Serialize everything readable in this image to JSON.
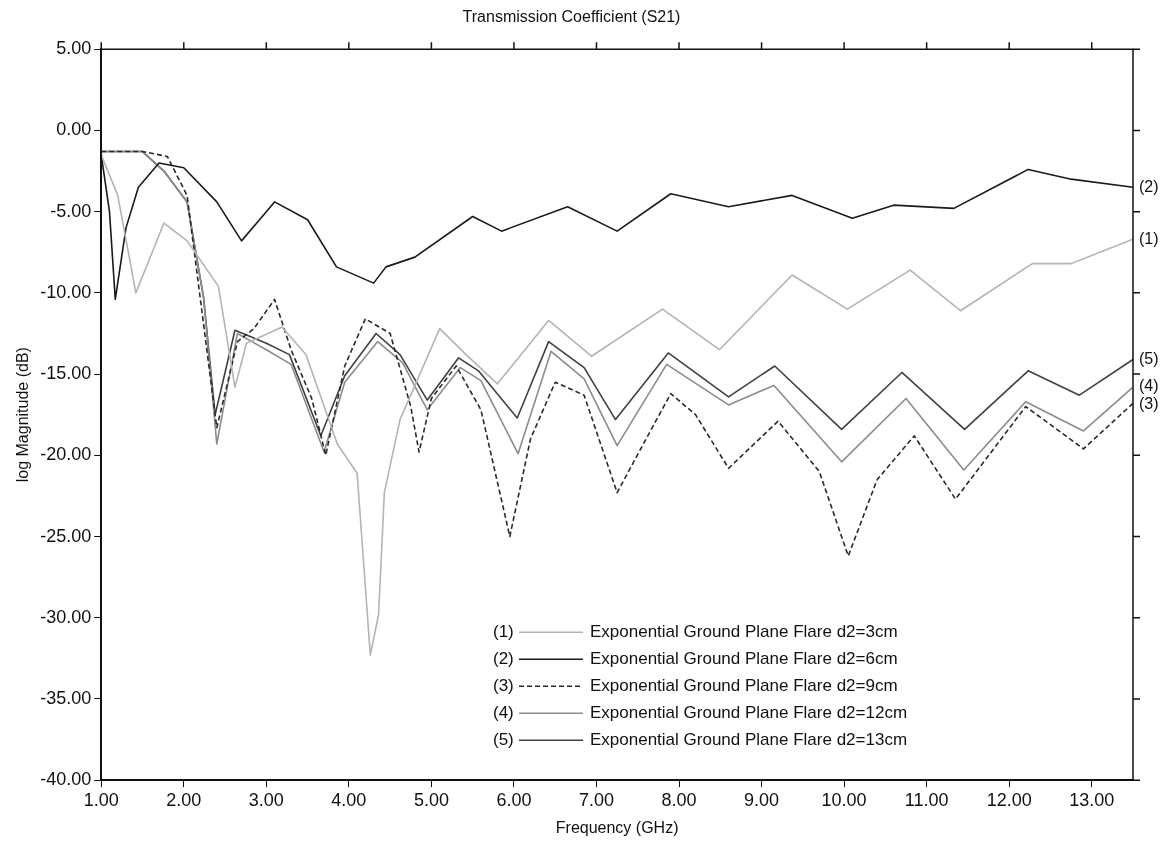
{
  "chart_data": {
    "type": "line",
    "title": "Transmission Coefficient (S21)",
    "xlabel": "Frequency (GHz)",
    "ylabel": "log Magnitude (dB)",
    "xlim": [
      1,
      13.5
    ],
    "ylim": [
      -40,
      5
    ],
    "xticks": [
      {
        "value": 1,
        "label": "1.00"
      },
      {
        "value": 2,
        "label": "2.00"
      },
      {
        "value": 3,
        "label": "3.00"
      },
      {
        "value": 4,
        "label": "4.00"
      },
      {
        "value": 5,
        "label": "5.00"
      },
      {
        "value": 6,
        "label": "6.00"
      },
      {
        "value": 7,
        "label": "7.00"
      },
      {
        "value": 8,
        "label": "8.00"
      },
      {
        "value": 9,
        "label": "9.00"
      },
      {
        "value": 10,
        "label": "10.00"
      },
      {
        "value": 11,
        "label": "11.00"
      },
      {
        "value": 12,
        "label": "12.00"
      },
      {
        "value": 13,
        "label": "13.00"
      }
    ],
    "yticks": [
      {
        "value": 5,
        "label": "5.00"
      },
      {
        "value": 0,
        "label": "0.00"
      },
      {
        "value": -5,
        "label": "-5.00"
      },
      {
        "value": -10,
        "label": "-10.00"
      },
      {
        "value": -15,
        "label": "-15.00"
      },
      {
        "value": -20,
        "label": "-20.00"
      },
      {
        "value": -25,
        "label": "-25.00"
      },
      {
        "value": -30,
        "label": "-30.00"
      },
      {
        "value": -35,
        "label": "-35.00"
      },
      {
        "value": -40,
        "label": "-40.00"
      }
    ],
    "grid": false,
    "legend": "bottom right",
    "marker": "none",
    "annotations": [
      "(1)",
      "(2)",
      "(3)",
      "(4)",
      "(5)"
    ],
    "series": [
      {
        "name": "Exponential Ground Plane Flare d2=3cm",
        "color": "#b4b4b4",
        "line_style": "solid",
        "x": [
          1.0,
          1.2,
          1.42,
          1.76,
          2.04,
          2.42,
          2.62,
          2.76,
          3.19,
          3.48,
          3.86,
          4.1,
          4.26,
          4.36,
          4.43,
          4.62,
          5.1,
          5.42,
          5.8,
          6.42,
          6.94,
          7.8,
          8.49,
          9.37,
          10.04,
          10.8,
          11.41,
          12.28,
          12.75,
          13.5
        ],
        "values": [
          -1.5,
          -4.0,
          -10.0,
          -5.7,
          -6.8,
          -9.6,
          -15.8,
          -13.1,
          -12.1,
          -13.8,
          -19.3,
          -21.1,
          -32.3,
          -29.8,
          -22.3,
          -17.8,
          -12.2,
          -13.8,
          -15.6,
          -11.7,
          -13.9,
          -11.0,
          -13.5,
          -8.9,
          -11.0,
          -8.6,
          -11.1,
          -8.2,
          -8.2,
          -6.7
        ]
      },
      {
        "name": "Exponential Ground Plane Flare d2=6cm",
        "color": "#1a1a1a",
        "line_style": "solid",
        "x": [
          1.0,
          1.1,
          1.17,
          1.3,
          1.45,
          1.7,
          2.0,
          2.4,
          2.7,
          3.1,
          3.5,
          3.85,
          4.3,
          4.45,
          4.8,
          5.5,
          5.85,
          6.65,
          7.25,
          7.9,
          8.6,
          9.37,
          10.1,
          10.6,
          11.33,
          12.23,
          12.75,
          13.5
        ],
        "values": [
          -1.5,
          -5.0,
          -10.4,
          -6.0,
          -3.5,
          -2.0,
          -2.3,
          -4.4,
          -6.8,
          -4.4,
          -5.5,
          -8.4,
          -9.4,
          -8.4,
          -7.8,
          -5.3,
          -6.2,
          -4.7,
          -6.2,
          -3.9,
          -4.7,
          -4.0,
          -5.4,
          -4.6,
          -4.8,
          -2.4,
          -3.0,
          -3.5
        ]
      },
      {
        "name": "Exponential Ground Plane Flare d2=9cm",
        "color": "#2a2a2a",
        "line_style": "dashed",
        "x": [
          1.0,
          1.5,
          1.8,
          2.04,
          2.4,
          2.65,
          2.85,
          3.1,
          3.3,
          3.55,
          3.72,
          3.95,
          4.2,
          4.5,
          4.75,
          4.85,
          5.0,
          5.3,
          5.6,
          5.95,
          6.2,
          6.5,
          6.85,
          7.25,
          7.6,
          7.9,
          8.2,
          8.6,
          9.2,
          9.7,
          10.05,
          10.4,
          10.85,
          11.35,
          12.2,
          12.9,
          13.5
        ],
        "values": [
          -1.3,
          -1.3,
          -1.6,
          -4.0,
          -18.3,
          -13.0,
          -12.2,
          -10.4,
          -13.5,
          -16.5,
          -20.0,
          -14.5,
          -11.6,
          -12.5,
          -17.0,
          -19.8,
          -16.5,
          -14.5,
          -17.2,
          -25.0,
          -19.0,
          -15.5,
          -16.3,
          -22.3,
          -19.0,
          -16.2,
          -17.5,
          -20.8,
          -17.9,
          -21.0,
          -26.2,
          -21.5,
          -18.8,
          -22.7,
          -17.0,
          -19.6,
          -16.8
        ]
      },
      {
        "name": "Exponential Ground Plane Flare d2=12cm",
        "color": "#8c8c8c",
        "line_style": "solid",
        "x": [
          1.0,
          1.5,
          1.76,
          2.04,
          2.24,
          2.4,
          2.65,
          3.0,
          3.3,
          3.7,
          3.95,
          4.35,
          4.65,
          4.95,
          5.35,
          5.6,
          6.05,
          6.45,
          6.85,
          7.25,
          7.85,
          8.6,
          9.15,
          9.97,
          10.75,
          11.45,
          12.2,
          12.9,
          13.5
        ],
        "values": [
          -1.3,
          -1.3,
          -2.5,
          -4.4,
          -10.3,
          -19.3,
          -12.5,
          -13.5,
          -14.4,
          -19.8,
          -15.5,
          -13.0,
          -14.3,
          -17.2,
          -14.6,
          -15.4,
          -19.9,
          -13.6,
          -15.3,
          -19.4,
          -14.4,
          -16.9,
          -15.7,
          -20.4,
          -16.5,
          -20.9,
          -16.7,
          -18.5,
          -15.8
        ]
      },
      {
        "name": "Exponential Ground Plane Flare d2=13cm",
        "color": "#404040",
        "line_style": "solid",
        "x": [
          1.0,
          1.5,
          1.76,
          2.04,
          2.24,
          2.38,
          2.62,
          3.0,
          3.28,
          3.66,
          3.95,
          4.33,
          4.62,
          4.95,
          5.33,
          5.57,
          6.04,
          6.42,
          6.85,
          7.23,
          7.87,
          8.6,
          9.16,
          9.97,
          10.7,
          11.46,
          12.23,
          12.85,
          13.5
        ],
        "values": [
          -1.3,
          -1.3,
          -2.5,
          -4.4,
          -10.3,
          -17.5,
          -12.3,
          -13.1,
          -13.8,
          -18.8,
          -15.1,
          -12.5,
          -13.8,
          -16.6,
          -14.0,
          -14.8,
          -17.7,
          -13.0,
          -14.6,
          -17.8,
          -13.7,
          -16.4,
          -14.5,
          -18.4,
          -14.9,
          -18.4,
          -14.8,
          -16.3,
          -14.1
        ]
      }
    ]
  }
}
